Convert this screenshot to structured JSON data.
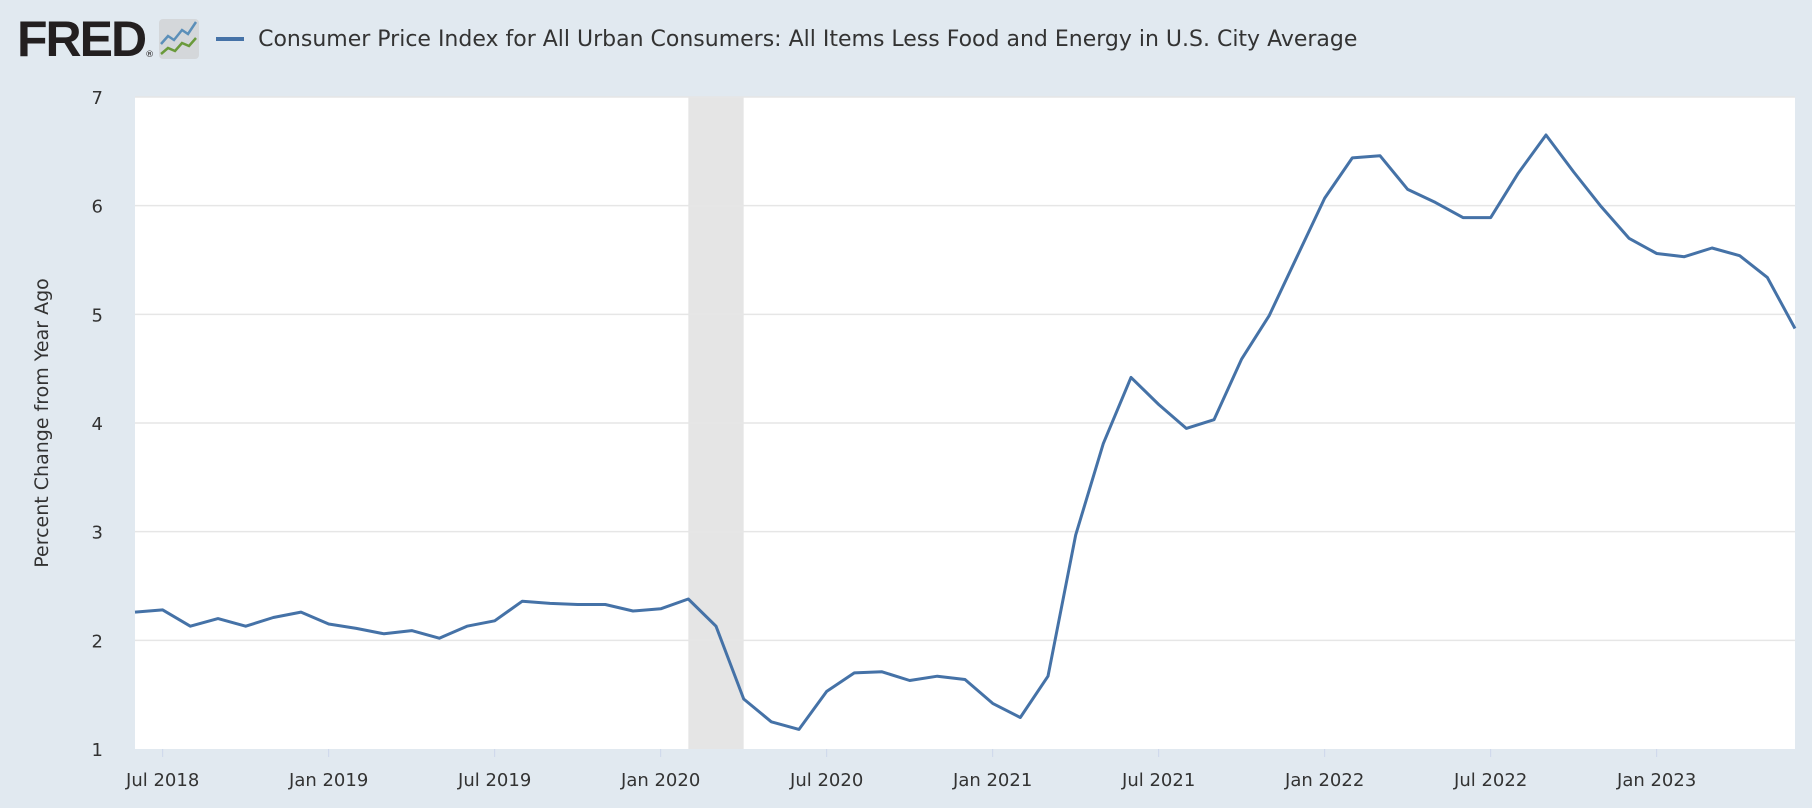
{
  "header": {
    "logo": "FRED",
    "logo_mark": "®",
    "title": "Consumer Price Index for All Urban Consumers: All Items Less Food and Energy in U.S. City Average"
  },
  "colors": {
    "series": "#4572a7",
    "recession": "#e5e5e5",
    "background": "#e1e9f0",
    "plot": "#ffffff",
    "grid": "#e6e6e6"
  },
  "chart_data": {
    "type": "line",
    "title": "Consumer Price Index for All Urban Consumers: All Items Less Food and Energy in U.S. City Average",
    "xlabel": "",
    "ylabel": "Percent Change from Year Ago",
    "ylim": [
      1,
      7
    ],
    "yticks": [
      1,
      2,
      3,
      4,
      5,
      6,
      7
    ],
    "xticks": [
      "Jul 2018",
      "Jan 2019",
      "Jul 2019",
      "Jan 2020",
      "Jul 2020",
      "Jan 2021",
      "Jul 2021",
      "Jan 2022",
      "Jul 2022",
      "Jan 2023"
    ],
    "grid": true,
    "legend": "top-left",
    "recessions": [
      {
        "start": "2020-02",
        "end": "2020-04"
      }
    ],
    "series": [
      {
        "name": "Consumer Price Index for All Urban Consumers: All Items Less Food and Energy in U.S. City Average",
        "x": [
          "2018-06",
          "2018-07",
          "2018-08",
          "2018-09",
          "2018-10",
          "2018-11",
          "2018-12",
          "2019-01",
          "2019-02",
          "2019-03",
          "2019-04",
          "2019-05",
          "2019-06",
          "2019-07",
          "2019-08",
          "2019-09",
          "2019-10",
          "2019-11",
          "2019-12",
          "2020-01",
          "2020-02",
          "2020-03",
          "2020-04",
          "2020-05",
          "2020-06",
          "2020-07",
          "2020-08",
          "2020-09",
          "2020-10",
          "2020-11",
          "2020-12",
          "2021-01",
          "2021-02",
          "2021-03",
          "2021-04",
          "2021-05",
          "2021-06",
          "2021-07",
          "2021-08",
          "2021-09",
          "2021-10",
          "2021-11",
          "2021-12",
          "2022-01",
          "2022-02",
          "2022-03",
          "2022-04",
          "2022-05",
          "2022-06",
          "2022-07",
          "2022-08",
          "2022-09",
          "2022-10",
          "2022-11",
          "2022-12",
          "2023-01",
          "2023-02",
          "2023-03",
          "2023-04",
          "2023-05",
          "2023-06"
        ],
        "values": [
          2.26,
          2.28,
          2.13,
          2.2,
          2.13,
          2.21,
          2.26,
          2.15,
          2.11,
          2.06,
          2.09,
          2.02,
          2.13,
          2.18,
          2.36,
          2.34,
          2.33,
          2.33,
          2.27,
          2.29,
          2.38,
          2.13,
          1.46,
          1.25,
          1.18,
          1.53,
          1.7,
          1.71,
          1.63,
          1.67,
          1.64,
          1.42,
          1.29,
          1.67,
          2.97,
          3.81,
          4.42,
          4.17,
          3.95,
          4.03,
          4.59,
          4.99,
          5.53,
          6.07,
          6.44,
          6.46,
          6.15,
          6.03,
          5.89,
          5.89,
          6.3,
          6.65,
          6.31,
          5.99,
          5.7,
          5.56,
          5.53,
          5.61,
          5.54,
          5.34,
          4.87
        ]
      }
    ]
  }
}
